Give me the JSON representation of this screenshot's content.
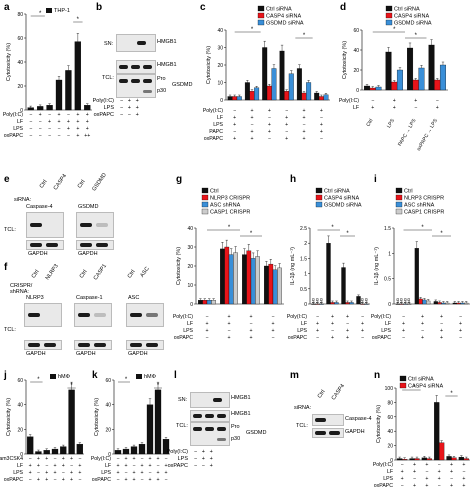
{
  "panels": {
    "a": {
      "letter": "a",
      "ylabel": "Cytotoxicity (%)",
      "legend": "THP-1",
      "rows": [
        "Poly(I:C)",
        "LF",
        "LPS",
        "oxPAPC"
      ],
      "row_values": [
        [
          "-",
          "+",
          "-",
          "+",
          "-",
          "+",
          "+"
        ],
        [
          "-",
          "-",
          "+",
          "+",
          "+",
          "+",
          "+"
        ],
        [
          "-",
          "-",
          "-",
          "-",
          "+",
          "+",
          "+"
        ],
        [
          "-",
          "-",
          "-",
          "-",
          "-",
          "+",
          "++"
        ]
      ]
    },
    "b": {
      "letter": "b",
      "sn": "SN:",
      "tcl": "TCL:",
      "hmgb1": "HMGB1",
      "pro": "Pro",
      "p30": "p30",
      "gsdmd": "GSDMD",
      "rows": [
        "Poly(I:C)",
        "LPS",
        "oxPAPC"
      ]
    },
    "c": {
      "letter": "c",
      "ylabel": "Cytotoxicity (%)",
      "legend": [
        "Ctrl siRNA",
        "CASP4 siRNA",
        "GSDMD siRNA"
      ],
      "rows": [
        "Poly(I:C)",
        "LF",
        "LPS",
        "PAPC",
        "oxPAPC"
      ]
    },
    "d": {
      "letter": "d",
      "ylabel": "Cytotoxicity (%)",
      "legend": [
        "Ctrl siRNA",
        "CASP4 siRNA",
        "GSDMD siRNA"
      ],
      "rows": [
        "Poly(I:C)",
        "LF"
      ],
      "cats": [
        "Ctrl",
        "LPS",
        "PAPC → LPS",
        "oxPAPC → LPS"
      ]
    },
    "e": {
      "letter": "e",
      "sirna": "siRNA:",
      "ctrl": "Ctrl",
      "casp4": "CASP4",
      "ctrl2": "Ctrl",
      "gsdmd": "GSDMD",
      "caspase4": "Caspase-4",
      "gsdmd_band": "GSDMD",
      "tcl": "TCL:",
      "gapdh": "GAPDH",
      "gapdh2": "GAPDH"
    },
    "f": {
      "letter": "f",
      "crispr": "CRISPR/ shRNA:",
      "ctrl": "Ctrl",
      "nlrp3": "NLRP3",
      "ctrl2": "Ctrl",
      "casp1": "CASP1",
      "ctrl3": "Ctrl",
      "asc": "ASC",
      "b1": "NLRP3",
      "b2": "Caspase-1",
      "b3": "ASC",
      "tcl": "TCL:",
      "gapdh": "GAPDH"
    },
    "g": {
      "letter": "g",
      "ylabel": "Cytotoxicity (%)",
      "legend": [
        "Ctrl",
        "NLRP3 CRISPR",
        "ASC shRNA",
        "CASP1 CRISPR"
      ],
      "rows": [
        "Poly(I:C)",
        "LF",
        "LPS",
        "oxPAPC"
      ]
    },
    "h": {
      "letter": "h",
      "ylabel": "IL-1β (ng mL⁻¹)",
      "legend": [
        "Ctrl siRNA",
        "CASP4 siRNA",
        "GSDMD siRNA"
      ],
      "rows": [
        "Poly(I:C)",
        "LF",
        "LPS",
        "oxPAPC"
      ],
      "nd": "ND"
    },
    "i": {
      "letter": "i",
      "ylabel": "IL-1β (ng mL⁻¹)",
      "legend": [
        "Ctrl",
        "NLRP3 CRISPR",
        "ASC shRNA",
        "CASP1 CRISPR"
      ],
      "rows": [
        "Poly(I:C)",
        "LF",
        "LPS",
        "oxPAPC"
      ],
      "nd": "ND"
    },
    "j": {
      "letter": "j",
      "ylabel": "Cytotoxicity (%)",
      "legend": "hMΦ",
      "rows": [
        "Pam3CSK4",
        "LF",
        "LPS",
        "oxPAPC"
      ]
    },
    "k": {
      "letter": "k",
      "ylabel": "Cytotoxicity (%)",
      "legend": "hMΦ",
      "rows": [
        "Poly(I:C)",
        "LF",
        "LPS",
        "oxPAPC"
      ]
    },
    "l": {
      "letter": "l",
      "sn": "SN:",
      "tcl": "TCL:",
      "hmgb1": "HMGB1",
      "hmgb1b": "HMGB1",
      "pro": "Pro",
      "p30": "p30",
      "gsdmd": "GSDMD",
      "rows": [
        "Poly(I:C)",
        "LPS",
        "oxPAPC"
      ]
    },
    "m": {
      "letter": "m",
      "sirna": "siRNA:",
      "ctrl": "Ctrl",
      "casp4": "CASP4",
      "caspase4": "Caspase-4",
      "gapdh": "GAPDH",
      "tcl": "TCL:"
    },
    "n": {
      "letter": "n",
      "ylabel": "Cytotoxicity (%)",
      "legend": [
        "Ctrl siRNA",
        "CASP4 siRNA"
      ],
      "rows": [
        "Poly(I:C)",
        "LF",
        "LPS",
        "oxPAPC"
      ]
    }
  },
  "colors": {
    "black": "#111111",
    "red": "#e8141a",
    "blue": "#3a8fd8",
    "white": "#ffffff",
    "grey": "#cccccc"
  },
  "chart_data": [
    {
      "panel": "a",
      "type": "bar",
      "ylim": [
        0,
        80
      ],
      "ticks": [
        0,
        20,
        40,
        60,
        80
      ],
      "values": [
        2,
        3,
        4,
        25,
        33,
        57,
        4
      ],
      "colors": [
        "black"
      ]
    },
    {
      "panel": "c",
      "type": "bar",
      "ylim": [
        0,
        40
      ],
      "ticks": [
        0,
        10,
        20,
        30,
        40
      ],
      "series": [
        {
          "name": "Ctrl siRNA",
          "values": [
            2,
            10,
            30,
            28,
            18,
            4
          ]
        },
        {
          "name": "CASP4 siRNA",
          "values": [
            2,
            5,
            8,
            5,
            4,
            2
          ]
        },
        {
          "name": "GSDMD siRNA",
          "values": [
            2,
            7,
            18,
            15,
            10,
            3
          ]
        }
      ]
    },
    {
      "panel": "d",
      "type": "bar",
      "ylim": [
        0,
        60
      ],
      "ticks": [
        0,
        20,
        40,
        60
      ],
      "series": [
        {
          "name": "Ctrl siRNA",
          "values": [
            4,
            38,
            42,
            45
          ]
        },
        {
          "name": "CASP4 siRNA",
          "values": [
            2,
            8,
            10,
            10
          ]
        },
        {
          "name": "GSDMD siRNA",
          "values": [
            3,
            20,
            22,
            25
          ]
        }
      ]
    },
    {
      "panel": "g",
      "type": "bar",
      "ylim": [
        0,
        40
      ],
      "ticks": [
        0,
        10,
        20,
        30,
        40
      ],
      "series": [
        {
          "name": "Ctrl",
          "values": [
            2,
            29,
            26,
            20
          ]
        },
        {
          "name": "NLRP3 CRISPR",
          "values": [
            2,
            30,
            28,
            21
          ]
        },
        {
          "name": "ASC shRNA",
          "values": [
            2,
            26,
            24,
            18
          ]
        },
        {
          "name": "CASP1 CRISPR",
          "values": [
            2,
            27,
            25,
            19
          ]
        }
      ]
    },
    {
      "panel": "h",
      "type": "bar",
      "ylim": [
        0,
        2.5
      ],
      "ticks": [
        0,
        0.5,
        1.0,
        1.5,
        2.0,
        2.5
      ],
      "series": [
        {
          "name": "Ctrl siRNA",
          "values": [
            0,
            2.0,
            1.2,
            0.25
          ]
        },
        {
          "name": "CASP4 siRNA",
          "values": [
            0,
            0.05,
            0.05,
            0
          ]
        },
        {
          "name": "GSDMD siRNA",
          "values": [
            0,
            0.05,
            0.05,
            0
          ]
        }
      ]
    },
    {
      "panel": "i",
      "type": "bar",
      "ylim": [
        0,
        1.5
      ],
      "ticks": [
        0,
        0.5,
        1.0,
        1.5
      ],
      "series": [
        {
          "name": "Ctrl",
          "values": [
            0,
            1.1,
            0.05,
            0.02
          ]
        },
        {
          "name": "NLRP3 CRISPR",
          "values": [
            0,
            0.1,
            0.03,
            0.02
          ]
        },
        {
          "name": "ASC shRNA",
          "values": [
            0,
            0.08,
            0.02,
            0.02
          ]
        },
        {
          "name": "CASP1 CRISPR",
          "values": [
            0,
            0.06,
            0.02,
            0.02
          ]
        }
      ]
    },
    {
      "panel": "j",
      "type": "bar",
      "ylim": [
        0,
        60
      ],
      "ticks": [
        0,
        20,
        40,
        60
      ],
      "values": [
        14,
        2,
        3,
        4,
        6,
        52,
        8
      ],
      "colors": [
        "black"
      ]
    },
    {
      "panel": "k",
      "type": "bar",
      "ylim": [
        0,
        60
      ],
      "ticks": [
        0,
        20,
        40,
        60
      ],
      "values": [
        3,
        4,
        6,
        8,
        40,
        52,
        12
      ],
      "colors": [
        "black"
      ]
    },
    {
      "panel": "n",
      "type": "bar",
      "ylim": [
        0,
        100
      ],
      "ticks": [
        0,
        20,
        40,
        60,
        80,
        100
      ],
      "series": [
        {
          "name": "Ctrl siRNA",
          "values": [
            2,
            2,
            3,
            80,
            5,
            4
          ]
        },
        {
          "name": "CASP4 siRNA",
          "values": [
            1,
            2,
            2,
            24,
            3,
            2
          ]
        }
      ]
    }
  ]
}
